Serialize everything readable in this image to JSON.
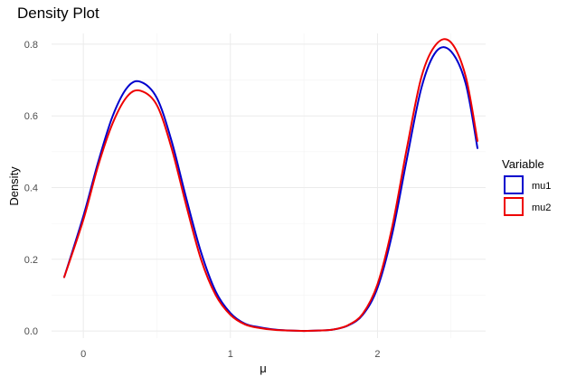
{
  "chart_data": {
    "type": "line",
    "title": "Density Plot",
    "xlabel": "μ",
    "ylabel": "Density",
    "xlim": [
      -0.13,
      2.68
    ],
    "ylim": [
      0,
      0.8
    ],
    "x_ticks": [
      0,
      1,
      2
    ],
    "y_ticks": [
      0.0,
      0.2,
      0.4,
      0.6,
      0.8
    ],
    "x_tick_labels": [
      "0",
      "1",
      "2"
    ],
    "y_tick_labels": [
      "0.0",
      "0.2",
      "0.4",
      "0.6",
      "0.8"
    ],
    "grid": true,
    "legend": {
      "title": "Variable",
      "position": "right"
    },
    "x": [
      -0.13,
      0.0,
      0.1,
      0.2,
      0.3,
      0.39,
      0.5,
      0.6,
      0.7,
      0.8,
      0.9,
      1.0,
      1.1,
      1.2,
      1.3,
      1.4,
      1.5,
      1.6,
      1.7,
      1.8,
      1.9,
      2.0,
      2.1,
      2.2,
      2.3,
      2.4,
      2.5,
      2.6,
      2.68
    ],
    "series": [
      {
        "name": "mu1",
        "color": "#0000cd",
        "values": [
          0.15,
          0.32,
          0.47,
          0.6,
          0.68,
          0.695,
          0.65,
          0.53,
          0.37,
          0.22,
          0.11,
          0.05,
          0.02,
          0.01,
          0.004,
          0.001,
          0.0,
          0.001,
          0.004,
          0.015,
          0.045,
          0.12,
          0.27,
          0.48,
          0.68,
          0.78,
          0.78,
          0.69,
          0.51
        ]
      },
      {
        "name": "mu2",
        "color": "#ee0000",
        "values": [
          0.15,
          0.31,
          0.46,
          0.58,
          0.655,
          0.67,
          0.63,
          0.51,
          0.35,
          0.2,
          0.1,
          0.045,
          0.018,
          0.008,
          0.003,
          0.001,
          0.0,
          0.001,
          0.004,
          0.016,
          0.048,
          0.13,
          0.29,
          0.51,
          0.71,
          0.8,
          0.805,
          0.71,
          0.53
        ]
      }
    ]
  }
}
